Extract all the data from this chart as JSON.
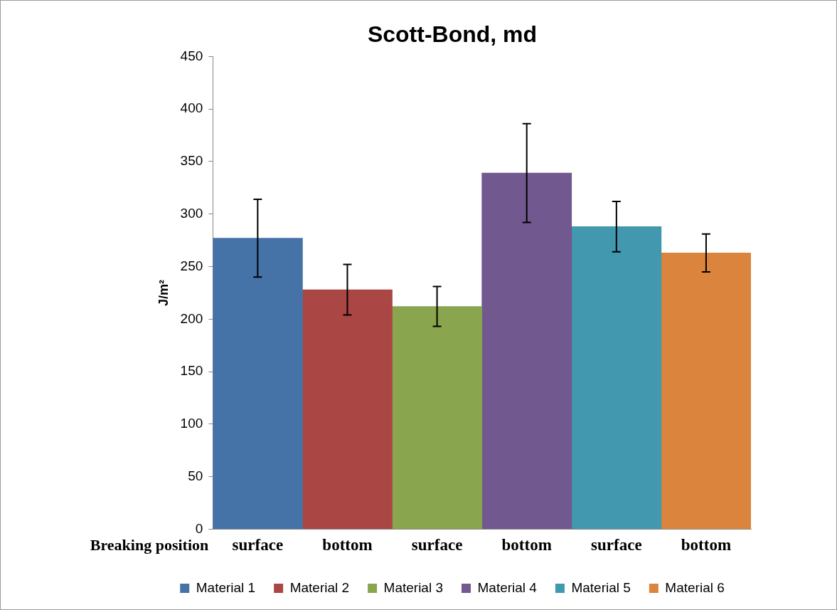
{
  "chart_data": {
    "type": "bar",
    "title": "Scott-Bond, md",
    "xlabel": "Breaking position",
    "ylabel": "J/m²",
    "categories": [
      "surface",
      "bottom",
      "surface",
      "bottom",
      "surface",
      "bottom"
    ],
    "series": [
      {
        "name": "Material 1",
        "color": "#4573a7",
        "values": [
          277,
          null,
          null,
          null,
          null,
          null
        ],
        "errors": [
          37,
          null,
          null,
          null,
          null,
          null
        ]
      },
      {
        "name": "Material 2",
        "color": "#aa4644",
        "values": [
          null,
          228,
          null,
          null,
          null,
          null
        ],
        "errors": [
          null,
          24,
          null,
          null,
          null,
          null
        ]
      },
      {
        "name": "Material 3",
        "color": "#89a54e",
        "values": [
          null,
          null,
          212,
          null,
          null,
          null
        ],
        "errors": [
          null,
          null,
          19,
          null,
          null,
          null
        ]
      },
      {
        "name": "Material 4",
        "color": "#71588f",
        "values": [
          null,
          null,
          null,
          339,
          null,
          null
        ],
        "errors": [
          null,
          null,
          null,
          47,
          null,
          null
        ]
      },
      {
        "name": "Material 5",
        "color": "#4298af",
        "values": [
          null,
          null,
          null,
          null,
          288,
          null
        ],
        "errors": [
          null,
          null,
          null,
          null,
          24,
          null
        ]
      },
      {
        "name": "Material 6",
        "color": "#db843d",
        "values": [
          null,
          null,
          null,
          null,
          null,
          263
        ],
        "errors": [
          null,
          null,
          null,
          null,
          null,
          18
        ]
      }
    ],
    "ylim": [
      0,
      450
    ],
    "yticks": [
      0,
      50,
      100,
      150,
      200,
      250,
      300,
      350,
      400,
      450
    ],
    "grid": false,
    "legend": "bottom"
  }
}
